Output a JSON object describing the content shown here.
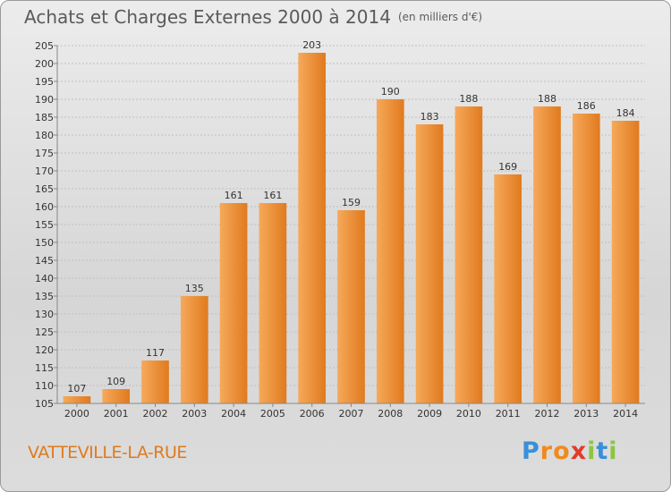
{
  "title": "Achats et Charges Externes 2000 à 2014",
  "unit_note": "(en milliers d'€)",
  "commune": "VATTEVILLE-LA-RUE",
  "logo": {
    "text": "Proxiti",
    "letters": [
      {
        "ch": "P",
        "color": "#3a8fd8"
      },
      {
        "ch": "r",
        "color": "#f08a1c"
      },
      {
        "ch": "o",
        "color": "#f08a1c"
      },
      {
        "ch": "x",
        "color": "#e23a2b"
      },
      {
        "ch": "i",
        "color": "#8cc63f"
      },
      {
        "ch": "t",
        "color": "#3a8fd8"
      },
      {
        "ch": "i",
        "color": "#8cc63f"
      }
    ]
  },
  "colors": {
    "bar_light": "#f6a95a",
    "bar_dark": "#e07a1e",
    "grid": "#c0c0c0",
    "text": "#333333"
  },
  "chart_data": {
    "type": "bar",
    "title": "Achats et Charges Externes 2000 à 2014",
    "xlabel": "",
    "ylabel": "",
    "ylim": [
      105,
      205
    ],
    "yticks": [
      105,
      110,
      115,
      120,
      125,
      130,
      135,
      140,
      145,
      150,
      155,
      160,
      165,
      170,
      175,
      180,
      185,
      190,
      195,
      200,
      205
    ],
    "grid": true,
    "categories": [
      "2000",
      "2001",
      "2002",
      "2003",
      "2004",
      "2005",
      "2006",
      "2007",
      "2008",
      "2009",
      "2010",
      "2011",
      "2012",
      "2013",
      "2014"
    ],
    "values": [
      107,
      109,
      117,
      135,
      161,
      161,
      203,
      159,
      190,
      183,
      188,
      169,
      188,
      186,
      184
    ]
  }
}
